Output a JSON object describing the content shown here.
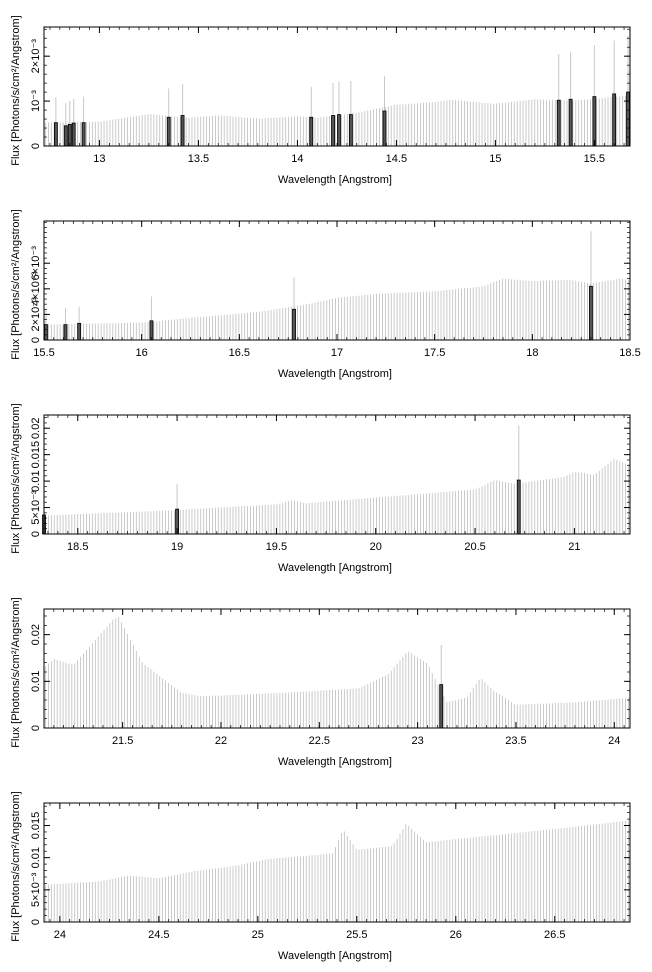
{
  "chart_data": [
    {
      "type": "bar",
      "xlabel": "Wavelength [Angstrom]",
      "ylabel": "Flux [Photons/s/cm²/Angstrom]",
      "xlim": [
        12.72,
        15.68
      ],
      "ylim": [
        0,
        0.00265
      ],
      "xticks": [
        13,
        13.5,
        14,
        14.5,
        15,
        15.5
      ],
      "xticklabels": [
        "13",
        "13.5",
        "14",
        "14.5",
        "15",
        "15.5"
      ],
      "yticks": [
        0,
        0.001,
        0.002
      ],
      "yticklabels": [
        "0",
        "10⁻³",
        "2×10⁻³"
      ],
      "continuum": [
        [
          12.72,
          0.00052
        ],
        [
          13.0,
          0.00054
        ],
        [
          13.25,
          0.00071
        ],
        [
          13.45,
          0.00063
        ],
        [
          13.6,
          0.00068
        ],
        [
          13.8,
          0.00061
        ],
        [
          14.0,
          0.00066
        ],
        [
          14.1,
          0.00063
        ],
        [
          14.3,
          0.00074
        ],
        [
          14.5,
          0.00092
        ],
        [
          14.65,
          0.00096
        ],
        [
          14.78,
          0.00103
        ],
        [
          14.9,
          0.00098
        ],
        [
          15.0,
          0.00094
        ],
        [
          15.2,
          0.00104
        ],
        [
          15.4,
          0.00101
        ],
        [
          15.55,
          0.00107
        ],
        [
          15.68,
          0.00113
        ]
      ],
      "lines": [
        [
          12.78,
          0.00052,
          0.00108
        ],
        [
          12.83,
          0.00045,
          0.00095
        ],
        [
          12.85,
          0.00048,
          0.001
        ],
        [
          12.87,
          0.00051,
          0.00105
        ],
        [
          12.92,
          0.00052,
          0.0011
        ],
        [
          13.35,
          0.00064,
          0.00128
        ],
        [
          13.42,
          0.00068,
          0.00138
        ],
        [
          14.07,
          0.00064,
          0.00132
        ],
        [
          14.18,
          0.00068,
          0.0014
        ],
        [
          14.21,
          0.0007,
          0.00143
        ],
        [
          14.27,
          0.0007,
          0.00145
        ],
        [
          14.44,
          0.00078,
          0.00155
        ],
        [
          15.32,
          0.00102,
          0.00205
        ],
        [
          15.38,
          0.00104,
          0.0021
        ],
        [
          15.5,
          0.0011,
          0.00225
        ],
        [
          15.6,
          0.00116,
          0.00235
        ],
        [
          15.67,
          0.0012,
          0.00245
        ]
      ]
    },
    {
      "type": "bar",
      "xlabel": "Wavelength [Angstrom]",
      "ylabel": "Flux [Photons/s/cm²/Angstrom]",
      "xlim": [
        15.5,
        18.5
      ],
      "ylim": [
        0,
        0.0093
      ],
      "xticks": [
        15.5,
        16,
        16.5,
        17,
        17.5,
        18,
        18.5
      ],
      "xticklabels": [
        "15.5",
        "16",
        "16.5",
        "17",
        "17.5",
        "18",
        "18.5"
      ],
      "yticks": [
        0,
        0.002,
        0.004,
        0.006
      ],
      "yticklabels": [
        "0",
        "2×10⁻³",
        "4×10⁻³",
        "6×10⁻³"
      ],
      "continuum": [
        [
          15.5,
          0.0012
        ],
        [
          15.8,
          0.0013
        ],
        [
          16.0,
          0.00135
        ],
        [
          16.3,
          0.0018
        ],
        [
          16.6,
          0.0022
        ],
        [
          16.85,
          0.0028
        ],
        [
          17.0,
          0.0033
        ],
        [
          17.2,
          0.0036
        ],
        [
          17.5,
          0.0038
        ],
        [
          17.75,
          0.0042
        ],
        [
          17.85,
          0.0048
        ],
        [
          18.0,
          0.0046
        ],
        [
          18.2,
          0.0047
        ],
        [
          18.3,
          0.0044
        ],
        [
          18.45,
          0.0048
        ],
        [
          18.5,
          0.0047
        ]
      ],
      "lines": [
        [
          15.51,
          0.0012,
          0.0024
        ],
        [
          15.61,
          0.0012,
          0.0025
        ],
        [
          15.68,
          0.0013,
          0.0026
        ],
        [
          16.05,
          0.0015,
          0.0034
        ],
        [
          16.78,
          0.0024,
          0.0049
        ],
        [
          18.3,
          0.0042,
          0.0085
        ]
      ]
    },
    {
      "type": "bar",
      "xlabel": "Wavelength [Angstrom]",
      "ylabel": "Flux [Photons/s/cm²/Angstrom]",
      "xlim": [
        18.33,
        21.28
      ],
      "ylim": [
        0,
        0.0225
      ],
      "xticks": [
        18.5,
        19,
        19.5,
        20,
        20.5,
        21
      ],
      "xticklabels": [
        "18.5",
        "19",
        "19.5",
        "20",
        "20.5",
        "21"
      ],
      "yticks": [
        0,
        0.005,
        0.01,
        0.015,
        0.02
      ],
      "yticklabels": [
        "0",
        "5×10⁻³",
        "0.01",
        "0.015",
        "0.02"
      ],
      "continuum": [
        [
          18.33,
          0.0035
        ],
        [
          18.8,
          0.0042
        ],
        [
          19.0,
          0.0045
        ],
        [
          19.3,
          0.0052
        ],
        [
          19.5,
          0.0056
        ],
        [
          19.58,
          0.0064
        ],
        [
          19.65,
          0.0058
        ],
        [
          19.9,
          0.0066
        ],
        [
          20.2,
          0.0075
        ],
        [
          20.5,
          0.0084
        ],
        [
          20.6,
          0.0102
        ],
        [
          20.7,
          0.0095
        ],
        [
          20.95,
          0.0108
        ],
        [
          21.0,
          0.0118
        ],
        [
          21.1,
          0.0112
        ],
        [
          21.2,
          0.0142
        ],
        [
          21.28,
          0.013
        ]
      ],
      "lines": [
        [
          18.33,
          0.0036,
          0.0062
        ],
        [
          19.0,
          0.0047,
          0.0095
        ],
        [
          20.72,
          0.0102,
          0.0205
        ]
      ]
    },
    {
      "type": "bar",
      "xlabel": "Wavelength [Angstrom]",
      "ylabel": "Flux [Photons/s/cm²/Angstrom]",
      "xlim": [
        21.1,
        24.08
      ],
      "ylim": [
        0,
        0.0255
      ],
      "xticks": [
        21.5,
        22,
        22.5,
        23,
        23.5,
        24
      ],
      "xticklabels": [
        "21.5",
        "22",
        "22.5",
        "23",
        "23.5",
        "24"
      ],
      "yticks": [
        0,
        0.01,
        0.02
      ],
      "yticklabels": [
        "0",
        "0.01",
        "0.02"
      ],
      "continuum": [
        [
          21.1,
          0.013
        ],
        [
          21.15,
          0.0148
        ],
        [
          21.25,
          0.0135
        ],
        [
          21.45,
          0.0232
        ],
        [
          21.48,
          0.0238
        ],
        [
          21.6,
          0.014
        ],
        [
          21.8,
          0.0075
        ],
        [
          21.9,
          0.0068
        ],
        [
          22.3,
          0.0075
        ],
        [
          22.7,
          0.0085
        ],
        [
          22.85,
          0.0115
        ],
        [
          22.95,
          0.0165
        ],
        [
          23.05,
          0.0138
        ],
        [
          23.15,
          0.0055
        ],
        [
          23.25,
          0.0065
        ],
        [
          23.32,
          0.0108
        ],
        [
          23.38,
          0.0082
        ],
        [
          23.5,
          0.005
        ],
        [
          23.8,
          0.0055
        ],
        [
          24.08,
          0.0065
        ]
      ],
      "lines": [
        [
          23.12,
          0.0093,
          0.0178
        ]
      ]
    },
    {
      "type": "bar",
      "xlabel": "Wavelength [Angstrom]",
      "ylabel": "Flux [Photons/s/cm²/Angstrom]",
      "xlim": [
        23.92,
        26.88
      ],
      "ylim": [
        0,
        0.0185
      ],
      "xticks": [
        24,
        24.5,
        25,
        25.5,
        26,
        26.5
      ],
      "xticklabels": [
        "24",
        "24.5",
        "25",
        "25.5",
        "26",
        "26.5"
      ],
      "yticks": [
        0,
        0.005,
        0.01,
        0.015
      ],
      "yticklabels": [
        "0",
        "5×10⁻³",
        "0.01",
        "0.015"
      ],
      "continuum": [
        [
          23.92,
          0.0058
        ],
        [
          24.2,
          0.0063
        ],
        [
          24.35,
          0.0072
        ],
        [
          24.5,
          0.0068
        ],
        [
          24.68,
          0.0079
        ],
        [
          24.9,
          0.0088
        ],
        [
          25.05,
          0.0098
        ],
        [
          25.25,
          0.0103
        ],
        [
          25.38,
          0.0107
        ],
        [
          25.43,
          0.0144
        ],
        [
          25.5,
          0.0112
        ],
        [
          25.68,
          0.0118
        ],
        [
          25.75,
          0.0153
        ],
        [
          25.85,
          0.0124
        ],
        [
          26.2,
          0.0135
        ],
        [
          26.6,
          0.0148
        ],
        [
          26.88,
          0.0158
        ]
      ],
      "lines": []
    }
  ]
}
